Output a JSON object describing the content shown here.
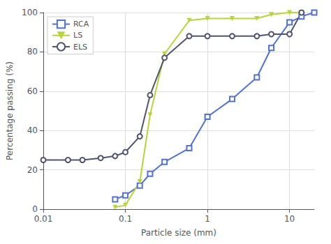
{
  "chart_data": {
    "type": "line",
    "xlabel": "Particle size (mm)",
    "ylabel": "Percentage passing (%)",
    "log": "x",
    "xlim": [
      0.01,
      20
    ],
    "ylim": [
      0,
      100
    ],
    "xticks": [
      0.01,
      0.1,
      1,
      10
    ],
    "yticks": [
      0,
      20,
      40,
      60,
      80,
      100
    ],
    "grid": true,
    "legend": "upper left",
    "series": [
      {
        "name": "RCA",
        "marker": "square-open",
        "x": [
          0.075,
          0.1,
          0.15,
          0.2,
          0.3,
          0.6,
          1.0,
          2.0,
          4.0,
          6.0,
          10.0,
          14.0,
          20.0
        ],
        "values": [
          5,
          7,
          12,
          18,
          24,
          31,
          47,
          56,
          67,
          82,
          95,
          98,
          100
        ]
      },
      {
        "name": "LS",
        "marker": "triangle-down",
        "x": [
          0.075,
          0.1,
          0.15,
          0.2,
          0.3,
          0.6,
          1.0,
          2.0,
          4.0,
          6.0,
          10.0,
          14.0
        ],
        "values": [
          1,
          2,
          14,
          48,
          79,
          96,
          97,
          97,
          97,
          99,
          100,
          100
        ]
      },
      {
        "name": "ELS",
        "marker": "circle-open",
        "x": [
          0.01,
          0.02,
          0.03,
          0.05,
          0.075,
          0.1,
          0.15,
          0.2,
          0.3,
          0.6,
          1.0,
          2.0,
          4.0,
          6.0,
          10.0,
          14.0
        ],
        "values": [
          25,
          25,
          25,
          26,
          27,
          29,
          37,
          58,
          77,
          88,
          88,
          88,
          88,
          89,
          89,
          100
        ]
      }
    ]
  }
}
